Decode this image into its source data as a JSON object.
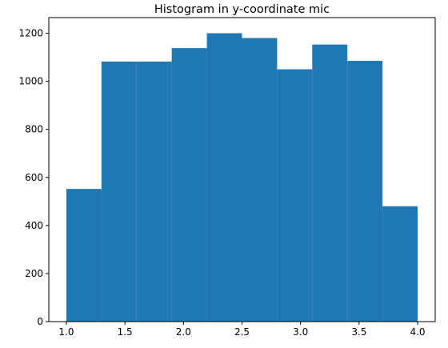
{
  "chart_data": {
    "type": "bar",
    "title": "Histogram in y-coordinate mic",
    "xlabel": "",
    "ylabel": "",
    "bin_edges": [
      1.0,
      1.3,
      1.6,
      1.9,
      2.2,
      2.5,
      2.8,
      3.1,
      3.4,
      3.7,
      4.0
    ],
    "values": [
      552,
      1082,
      1082,
      1138,
      1200,
      1180,
      1050,
      1153,
      1085,
      480
    ],
    "xlim": [
      0.85,
      4.15
    ],
    "ylim": [
      0,
      1265
    ],
    "xticks": [
      1.0,
      1.5,
      2.0,
      2.5,
      3.0,
      3.5,
      4.0
    ],
    "xtick_labels": [
      "1.0",
      "1.5",
      "2.0",
      "2.5",
      "3.0",
      "3.5",
      "4.0"
    ],
    "yticks": [
      0,
      200,
      400,
      600,
      800,
      1000,
      1200
    ],
    "ytick_labels": [
      "0",
      "200",
      "400",
      "600",
      "800",
      "1000",
      "1200"
    ],
    "bar_color": "#1f77b4",
    "grid": false
  }
}
